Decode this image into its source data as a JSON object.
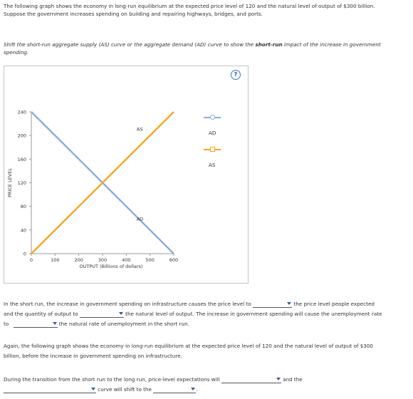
{
  "intro": {
    "line1": "The following graph shows the economy in long-run equilibrium at the expected price level of 120 and the natural level of output of $300 billion.",
    "line2": "Suppose the government increases spending on building and repairing highways, bridges, and ports."
  },
  "instruction": {
    "prefix": "Shift the short-run aggregate supply (AS) curve or the aggregate demand (AD) curve to show the ",
    "bold": "short-run",
    "suffix": " impact of the increase in government",
    "line2": "spending."
  },
  "help_label": "?",
  "chart_data": {
    "type": "line",
    "xlabel": "OUTPUT (Billions of dollars)",
    "ylabel": "PRICE LEVEL",
    "xlim": [
      0,
      600
    ],
    "ylim": [
      0,
      240
    ],
    "xticks": [
      0,
      100,
      200,
      300,
      400,
      500,
      600
    ],
    "yticks": [
      0,
      40,
      80,
      120,
      160,
      200,
      240
    ],
    "series": [
      {
        "name": "AS",
        "color": "#f5a623",
        "points": [
          [
            0,
            0
          ],
          [
            600,
            240
          ]
        ],
        "label_at": [
          487,
          207
        ],
        "label_low_at": [
          487,
          56
        ]
      },
      {
        "name": "AD",
        "color": "#8faadc",
        "points": [
          [
            0,
            240
          ],
          [
            600,
            0
          ]
        ]
      }
    ],
    "curve_labels": [
      {
        "text": "AS",
        "x": 487,
        "y": 208
      },
      {
        "text": "AD",
        "x": 487,
        "y": 56
      }
    ]
  },
  "legend": {
    "items": [
      {
        "label": "AD",
        "color": "#8faadc"
      },
      {
        "label": "AS",
        "color": "#f5a623"
      }
    ]
  },
  "q1": {
    "part1": "In the short run, the increase in government spending on infrastructure causes the price level to",
    "part2": "the price level people expected",
    "part3": "and the quantity of output to",
    "part4": "the natural level of output. The increase in government spending will cause the unemployment rate",
    "part5": "to",
    "part6": "the natural rate of unemployment in the short run."
  },
  "again": {
    "line1": "Again, the following graph shows the economy in long-run equilibrium at the expected price level of 120 and the natural level of output of $300",
    "line2": "billion, before the increase in government spending on infrastructure."
  },
  "q2": {
    "part1": "During the transition from the short run to the long run, price-level expectations will",
    "part2": "and the",
    "part3": "curve will shift to the",
    "part4": "."
  }
}
